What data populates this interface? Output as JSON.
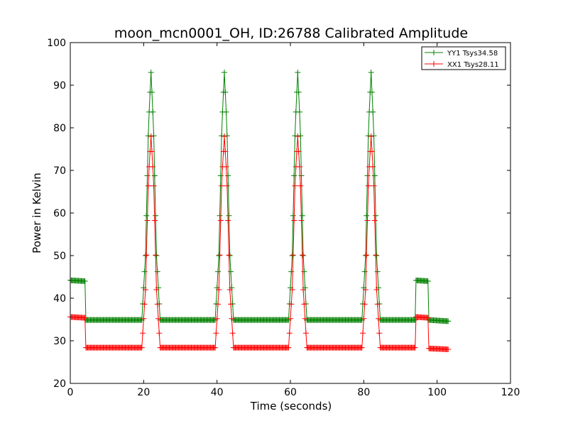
{
  "chart_data": {
    "type": "line",
    "title": "moon_mcn0001_OH, ID:26788 Calibrated Amplitude",
    "xlabel": "Time (seconds)",
    "ylabel": "Power in Kelvin",
    "xlim": [
      0,
      120
    ],
    "ylim": [
      20,
      100
    ],
    "xticks": [
      0,
      20,
      40,
      60,
      80,
      100,
      120
    ],
    "yticks": [
      20,
      30,
      40,
      50,
      60,
      70,
      80,
      90,
      100
    ],
    "grid": false,
    "legend_position": "top-right",
    "marker": "plus",
    "sample_spacing": 0.25,
    "series": [
      {
        "name": "YY1 Tsys34.58",
        "color": "#008000",
        "baseline": 34.9,
        "points": [
          [
            0,
            44.2
          ],
          [
            4,
            44.0
          ],
          [
            4.1,
            34.9
          ],
          [
            19.5,
            34.9
          ],
          [
            20.5,
            50
          ],
          [
            21.3,
            80
          ],
          [
            22,
            93
          ],
          [
            22.7,
            80
          ],
          [
            23.5,
            50
          ],
          [
            24.5,
            34.9
          ],
          [
            39.5,
            34.9
          ],
          [
            40.5,
            50
          ],
          [
            41.3,
            80
          ],
          [
            42,
            93
          ],
          [
            42.7,
            80
          ],
          [
            43.5,
            50
          ],
          [
            44.5,
            34.9
          ],
          [
            59.5,
            34.9
          ],
          [
            60.5,
            50
          ],
          [
            61.3,
            80
          ],
          [
            62,
            93
          ],
          [
            62.7,
            80
          ],
          [
            63.5,
            50
          ],
          [
            64.5,
            34.9
          ],
          [
            79.5,
            34.9
          ],
          [
            80.5,
            50
          ],
          [
            81.3,
            80
          ],
          [
            82,
            93
          ],
          [
            82.7,
            80
          ],
          [
            83.5,
            50
          ],
          [
            84.5,
            34.9
          ],
          [
            94,
            34.9
          ],
          [
            94.1,
            44.2
          ],
          [
            97.6,
            44.0
          ],
          [
            97.7,
            34.9
          ],
          [
            103,
            34.6
          ]
        ]
      },
      {
        "name": "XX1 Tsys28.11",
        "color": "#ff0000",
        "baseline": 28.4,
        "points": [
          [
            0,
            35.6
          ],
          [
            4,
            35.4
          ],
          [
            4.1,
            28.4
          ],
          [
            19.5,
            28.4
          ],
          [
            20.5,
            42
          ],
          [
            21.3,
            68
          ],
          [
            22,
            78
          ],
          [
            22.7,
            68
          ],
          [
            23.5,
            42
          ],
          [
            24.5,
            28.4
          ],
          [
            39.5,
            28.4
          ],
          [
            40.5,
            42
          ],
          [
            41.3,
            68
          ],
          [
            42,
            78
          ],
          [
            42.7,
            68
          ],
          [
            43.5,
            42
          ],
          [
            44.5,
            28.4
          ],
          [
            59.5,
            28.4
          ],
          [
            60.5,
            42
          ],
          [
            61.3,
            68
          ],
          [
            62,
            78
          ],
          [
            62.7,
            68
          ],
          [
            63.5,
            42
          ],
          [
            64.5,
            28.4
          ],
          [
            79.5,
            28.4
          ],
          [
            80.5,
            42
          ],
          [
            81.3,
            68
          ],
          [
            82,
            78
          ],
          [
            82.7,
            68
          ],
          [
            83.5,
            42
          ],
          [
            84.5,
            28.4
          ],
          [
            94,
            28.4
          ],
          [
            94.1,
            35.6
          ],
          [
            97.6,
            35.4
          ],
          [
            97.7,
            28.2
          ],
          [
            103,
            28.0
          ]
        ]
      }
    ]
  }
}
